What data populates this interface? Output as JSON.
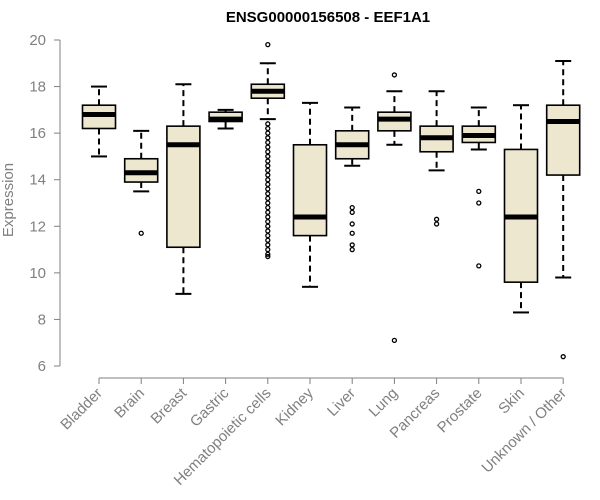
{
  "chart_data": {
    "type": "boxplot",
    "title": "ENSG00000156508 - EEF1A1",
    "xlabel": "",
    "ylabel": "Expression",
    "ylim": [
      6,
      20
    ],
    "yticks": [
      6,
      8,
      10,
      12,
      14,
      16,
      18,
      20
    ],
    "grid": false,
    "colors": {
      "box_fill": "#ede7d0",
      "box_stroke": "#000000",
      "axis": "#808080",
      "text": "#808080"
    },
    "categories": [
      "Bladder",
      "Brain",
      "Breast",
      "Gastric",
      "Hematopoietic cells",
      "Kidney",
      "Liver",
      "Lung",
      "Pancreas",
      "Prostate",
      "Skin",
      "Unknown / Other"
    ],
    "boxes": [
      {
        "category": "Bladder",
        "whisker_low": 15.0,
        "q1": 16.2,
        "median": 16.8,
        "q3": 17.2,
        "whisker_high": 18.0,
        "outliers": []
      },
      {
        "category": "Brain",
        "whisker_low": 13.5,
        "q1": 13.9,
        "median": 14.3,
        "q3": 14.9,
        "whisker_high": 16.1,
        "outliers": [
          11.7
        ]
      },
      {
        "category": "Breast",
        "whisker_low": 9.1,
        "q1": 11.1,
        "median": 15.5,
        "q3": 16.3,
        "whisker_high": 18.1,
        "outliers": []
      },
      {
        "category": "Gastric",
        "whisker_low": 16.2,
        "q1": 16.5,
        "median": 16.6,
        "q3": 16.9,
        "whisker_high": 17.0,
        "outliers": []
      },
      {
        "category": "Hematopoietic cells",
        "whisker_low": 16.6,
        "q1": 17.5,
        "median": 17.8,
        "q3": 18.1,
        "whisker_high": 19.0,
        "outliers": [
          19.8,
          16.4,
          16.2,
          16.0,
          15.8,
          15.6,
          15.4,
          15.2,
          15.0,
          14.8,
          14.6,
          14.4,
          14.2,
          14.0,
          13.8,
          13.6,
          13.4,
          13.2,
          13.0,
          12.8,
          12.6,
          12.4,
          12.2,
          12.0,
          11.8,
          11.6,
          11.4,
          11.2,
          11.0,
          10.8,
          10.7
        ]
      },
      {
        "category": "Kidney",
        "whisker_low": 9.4,
        "q1": 11.6,
        "median": 12.4,
        "q3": 15.5,
        "whisker_high": 17.3,
        "outliers": []
      },
      {
        "category": "Liver",
        "whisker_low": 14.6,
        "q1": 14.9,
        "median": 15.5,
        "q3": 16.1,
        "whisker_high": 17.1,
        "outliers": [
          12.8,
          12.6,
          12.1,
          11.7,
          11.2,
          11.0
        ]
      },
      {
        "category": "Lung",
        "whisker_low": 15.5,
        "q1": 16.1,
        "median": 16.6,
        "q3": 16.9,
        "whisker_high": 17.8,
        "outliers": [
          18.5,
          7.1
        ]
      },
      {
        "category": "Pancreas",
        "whisker_low": 14.4,
        "q1": 15.2,
        "median": 15.8,
        "q3": 16.3,
        "whisker_high": 17.8,
        "outliers": [
          12.3,
          12.1
        ]
      },
      {
        "category": "Prostate",
        "whisker_low": 15.3,
        "q1": 15.6,
        "median": 15.9,
        "q3": 16.3,
        "whisker_high": 17.1,
        "outliers": [
          13.5,
          13.0,
          10.3
        ]
      },
      {
        "category": "Skin",
        "whisker_low": 8.3,
        "q1": 9.6,
        "median": 12.4,
        "q3": 15.3,
        "whisker_high": 17.2,
        "outliers": []
      },
      {
        "category": "Unknown / Other",
        "whisker_low": 9.8,
        "q1": 14.2,
        "median": 16.5,
        "q3": 17.2,
        "whisker_high": 19.1,
        "outliers": [
          6.4
        ]
      }
    ]
  }
}
